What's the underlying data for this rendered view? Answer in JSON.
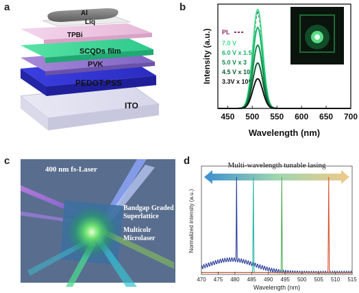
{
  "panels": {
    "a": {
      "label": "a",
      "layers": [
        "Al",
        "Liq",
        "TPBi",
        "SCQDs film",
        "PVK",
        "PEDOT:PSS",
        "ITO"
      ]
    },
    "b": {
      "label": "b",
      "legend": [
        "PL",
        "7.0 V",
        "6.0 V x 1.5",
        "5.0 V x 3",
        "4.5 V x 10",
        "3.3V x 10³"
      ],
      "xlabel": "Wavelength (nm)",
      "ylabel": "Intensity (a.u.)",
      "xticks": [
        "450",
        "500",
        "550",
        "600",
        "650",
        "700"
      ]
    },
    "c": {
      "label": "c",
      "text_laser": "400 nm fs-Laser",
      "text_superlattice_1": "Bandgap Graded",
      "text_superlattice_2": "Superlattice",
      "text_micro_1": "Multicolr",
      "text_micro_2": "Microlaser"
    },
    "d": {
      "label": "d",
      "banner": "Multi-wavelength tunable lasing",
      "xlabel": "Wavelength (nm)",
      "ylabel": "Normalized intensity (a.u.)",
      "xticks": [
        "470",
        "475",
        "480",
        "485",
        "490",
        "495",
        "500",
        "505",
        "510",
        "515"
      ]
    }
  },
  "chart_data": [
    {
      "type": "line",
      "panel": "b",
      "xlabel": "Wavelength (nm)",
      "ylabel": "Intensity (a.u.)",
      "xlim": [
        430,
        700
      ],
      "ylim": [
        0,
        1
      ],
      "peak_nm": 511,
      "series": [
        {
          "name": "PL",
          "color": "#8e2a6e",
          "style": "dash",
          "peak": 0.97,
          "fwhm": 24
        },
        {
          "name": "7.0 V",
          "color": "#3de08a",
          "peak": 1.0,
          "fwhm": 24
        },
        {
          "name": "6.0 V x 1.5",
          "color": "#1eb56c",
          "peak": 0.82,
          "fwhm": 24
        },
        {
          "name": "5.0 V x 3",
          "color": "#138a4c",
          "peak": 0.64,
          "fwhm": 24
        },
        {
          "name": "4.5 V x 10",
          "color": "#0d5c33",
          "peak": 0.46,
          "fwhm": 24
        },
        {
          "name": "3.3V x 10³",
          "color": "#111111",
          "peak": 0.3,
          "fwhm": 24
        }
      ]
    },
    {
      "type": "line",
      "panel": "d",
      "xlabel": "Wavelength (nm)",
      "ylabel": "Normalized intensity (a.u.)",
      "xlim": [
        470,
        515
      ],
      "ylim": [
        0,
        1
      ],
      "series": [
        {
          "peak_nm": 480.5,
          "color": "#2c3e9a",
          "background": true
        },
        {
          "peak_nm": 485.5,
          "color": "#28b4a8"
        },
        {
          "peak_nm": 494.0,
          "color": "#57b060"
        },
        {
          "peak_nm": 508.0,
          "color": "#d9542f"
        }
      ]
    }
  ]
}
